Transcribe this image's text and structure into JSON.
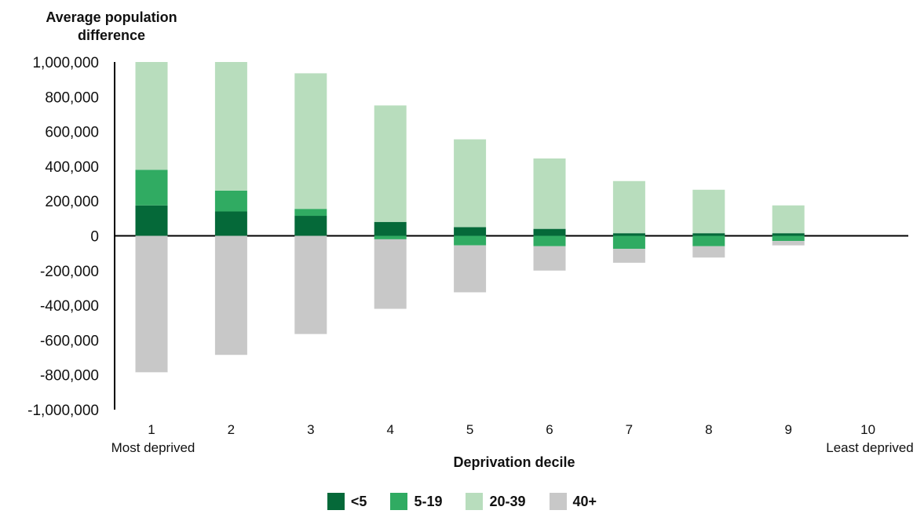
{
  "chart_data": {
    "type": "bar",
    "stacked": true,
    "ylabel": "Average population difference",
    "xlabel": "Deprivation decile",
    "categories": [
      "1",
      "2",
      "3",
      "4",
      "5",
      "6",
      "7",
      "8",
      "9",
      "10"
    ],
    "category_sublabels": {
      "first": "Most deprived",
      "last": "Least deprived"
    },
    "ylim": [
      -1000000,
      1000000
    ],
    "yticks": [
      1000000,
      800000,
      600000,
      400000,
      200000,
      0,
      -200000,
      -400000,
      -600000,
      -800000,
      -1000000
    ],
    "ytick_labels": [
      "1,000,000",
      "800,000",
      "600,000",
      "400,000",
      "200,000",
      "0",
      "-200,000",
      "-400,000",
      "-600,000",
      "-800,000",
      "-1,000,000"
    ],
    "grid": false,
    "legend_position": "bottom",
    "series": [
      {
        "name": "<5",
        "color": "#056939",
        "values": [
          175000,
          140000,
          115000,
          80000,
          50000,
          40000,
          15000,
          15000,
          15000,
          0
        ]
      },
      {
        "name": "5-19",
        "color": "#30ab62",
        "values": [
          205000,
          120000,
          40000,
          -20000,
          -55000,
          -60000,
          -75000,
          -60000,
          -30000,
          0
        ]
      },
      {
        "name": "20-39",
        "color": "#b8ddbd",
        "values": [
          620000,
          740000,
          780000,
          670000,
          505000,
          405000,
          300000,
          250000,
          160000,
          0
        ]
      },
      {
        "name": "40+",
        "color": "#c8c8c8",
        "values": [
          -785000,
          -685000,
          -565000,
          -400000,
          -270000,
          -140000,
          -80000,
          -65000,
          -25000,
          0
        ]
      }
    ]
  }
}
